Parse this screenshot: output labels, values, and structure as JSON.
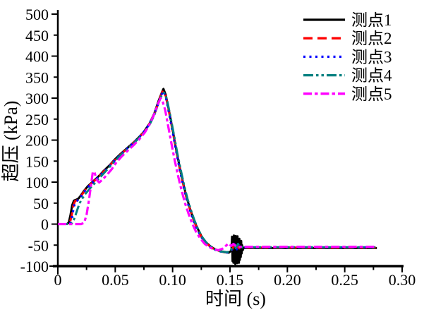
{
  "figure": {
    "background": "#ffffff"
  },
  "chart_data": {
    "type": "line",
    "title": "",
    "xlabel": "时间 (s)",
    "ylabel": "超压 (kPa)",
    "xlim": [
      0,
      0.3
    ],
    "ylim": [
      -100,
      500
    ],
    "grid": false,
    "legend_position": "top-right",
    "axis_color": "#000000",
    "x_major_ticks": [
      0,
      0.05,
      0.1,
      0.15,
      0.2,
      0.25,
      0.3
    ],
    "x_tick_labels": [
      "0",
      "0.05",
      "0.10",
      "0.15",
      "0.20",
      "0.25",
      "0.30"
    ],
    "x_minor_ticks": [
      0.025,
      0.075,
      0.125,
      0.175,
      0.225,
      0.275
    ],
    "y_ticks": [
      500,
      450,
      400,
      350,
      300,
      250,
      200,
      150,
      100,
      50,
      0,
      -50,
      -100
    ],
    "y_tick_labels": [
      "500",
      "450",
      "400",
      "350",
      "300",
      "250",
      "200",
      "150",
      "100",
      "50",
      "0",
      "-50",
      "-100"
    ],
    "series": [
      {
        "name": "测点1",
        "color": "#000000",
        "linestyle": "solid",
        "dasharray": "",
        "width": 3,
        "points": [
          [
            0,
            0
          ],
          [
            0.008,
            0
          ],
          [
            0.0095,
            4
          ],
          [
            0.011,
            22
          ],
          [
            0.0125,
            45
          ],
          [
            0.014,
            56
          ],
          [
            0.016,
            58
          ],
          [
            0.018,
            61
          ],
          [
            0.02,
            68
          ],
          [
            0.023,
            80
          ],
          [
            0.026,
            90
          ],
          [
            0.03,
            100
          ],
          [
            0.034,
            110
          ],
          [
            0.037,
            118
          ],
          [
            0.04,
            127
          ],
          [
            0.045,
            140
          ],
          [
            0.05,
            155
          ],
          [
            0.055,
            168
          ],
          [
            0.06,
            180
          ],
          [
            0.065,
            192
          ],
          [
            0.07,
            205
          ],
          [
            0.075,
            220
          ],
          [
            0.08,
            240
          ],
          [
            0.084,
            263
          ],
          [
            0.088,
            295
          ],
          [
            0.091,
            316
          ],
          [
            0.092,
            322
          ],
          [
            0.094,
            308
          ],
          [
            0.097,
            268
          ],
          [
            0.1,
            225
          ],
          [
            0.103,
            180
          ],
          [
            0.106,
            138
          ],
          [
            0.109,
            100
          ],
          [
            0.112,
            66
          ],
          [
            0.115,
            38
          ],
          [
            0.118,
            14
          ],
          [
            0.121,
            -6
          ],
          [
            0.125,
            -28
          ],
          [
            0.129,
            -43
          ],
          [
            0.133,
            -53
          ],
          [
            0.137,
            -60
          ],
          [
            0.141,
            -64
          ],
          [
            0.145,
            -66
          ],
          [
            0.149,
            -68
          ],
          [
            0.1512,
            -63
          ],
          [
            0.1518,
            -30
          ],
          [
            0.1522,
            -88
          ],
          [
            0.1526,
            -33
          ],
          [
            0.153,
            -92
          ],
          [
            0.1534,
            -27
          ],
          [
            0.1538,
            -90
          ],
          [
            0.1542,
            -32
          ],
          [
            0.1546,
            -95
          ],
          [
            0.155,
            -28
          ],
          [
            0.1554,
            -90
          ],
          [
            0.1558,
            -34
          ],
          [
            0.1562,
            -93
          ],
          [
            0.1566,
            -29
          ],
          [
            0.157,
            -88
          ],
          [
            0.1574,
            -40
          ],
          [
            0.1578,
            -92
          ],
          [
            0.1582,
            -35
          ],
          [
            0.1586,
            -85
          ],
          [
            0.159,
            -44
          ],
          [
            0.1594,
            -78
          ],
          [
            0.1598,
            -40
          ],
          [
            0.1602,
            -70
          ],
          [
            0.1606,
            -50
          ],
          [
            0.1612,
            -62
          ],
          [
            0.162,
            -56
          ],
          [
            0.163,
            -57
          ],
          [
            0.278,
            -57
          ]
        ]
      },
      {
        "name": "测点2",
        "color": "#ff0000",
        "linestyle": "dashed",
        "dasharray": "13 7",
        "width": 3,
        "points": [
          [
            0,
            0
          ],
          [
            0.009,
            0
          ],
          [
            0.0105,
            3
          ],
          [
            0.012,
            20
          ],
          [
            0.0135,
            44
          ],
          [
            0.015,
            55
          ],
          [
            0.017,
            57
          ],
          [
            0.019,
            62
          ],
          [
            0.022,
            74
          ],
          [
            0.025,
            86
          ],
          [
            0.029,
            96
          ],
          [
            0.033,
            106
          ],
          [
            0.037,
            117
          ],
          [
            0.041,
            128
          ],
          [
            0.046,
            142
          ],
          [
            0.051,
            156
          ],
          [
            0.056,
            169
          ],
          [
            0.061,
            181
          ],
          [
            0.066,
            194
          ],
          [
            0.071,
            207
          ],
          [
            0.076,
            223
          ],
          [
            0.081,
            244
          ],
          [
            0.085,
            268
          ],
          [
            0.089,
            300
          ],
          [
            0.0915,
            318
          ],
          [
            0.094,
            305
          ],
          [
            0.097,
            265
          ],
          [
            0.1,
            222
          ],
          [
            0.103,
            177
          ],
          [
            0.106,
            135
          ],
          [
            0.109,
            97
          ],
          [
            0.112,
            63
          ],
          [
            0.115,
            36
          ],
          [
            0.118,
            12
          ],
          [
            0.121,
            -8
          ],
          [
            0.125,
            -30
          ],
          [
            0.129,
            -44
          ],
          [
            0.133,
            -54
          ],
          [
            0.137,
            -61
          ],
          [
            0.141,
            -64
          ],
          [
            0.145,
            -67
          ],
          [
            0.149,
            -68
          ],
          [
            0.152,
            -60
          ],
          [
            0.1535,
            -48
          ],
          [
            0.155,
            -62
          ],
          [
            0.1565,
            -50
          ],
          [
            0.158,
            -58
          ],
          [
            0.16,
            -56
          ],
          [
            0.277,
            -56
          ]
        ]
      },
      {
        "name": "测点3",
        "color": "#0000ff",
        "linestyle": "dotted",
        "dasharray": "3 5.5",
        "width": 3,
        "points": [
          [
            0,
            0
          ],
          [
            0.0095,
            0
          ],
          [
            0.011,
            3
          ],
          [
            0.0125,
            18
          ],
          [
            0.014,
            42
          ],
          [
            0.0155,
            53
          ],
          [
            0.0175,
            57
          ],
          [
            0.02,
            65
          ],
          [
            0.023,
            77
          ],
          [
            0.027,
            90
          ],
          [
            0.031,
            101
          ],
          [
            0.035,
            111
          ],
          [
            0.039,
            122
          ],
          [
            0.043,
            132
          ],
          [
            0.048,
            147
          ],
          [
            0.053,
            161
          ],
          [
            0.058,
            174
          ],
          [
            0.063,
            186
          ],
          [
            0.068,
            199
          ],
          [
            0.073,
            213
          ],
          [
            0.078,
            231
          ],
          [
            0.083,
            255
          ],
          [
            0.087,
            283
          ],
          [
            0.09,
            306
          ],
          [
            0.0918,
            317
          ],
          [
            0.094,
            303
          ],
          [
            0.097,
            262
          ],
          [
            0.1,
            219
          ],
          [
            0.103,
            175
          ],
          [
            0.106,
            132
          ],
          [
            0.109,
            95
          ],
          [
            0.112,
            61
          ],
          [
            0.115,
            34
          ],
          [
            0.118,
            10
          ],
          [
            0.121,
            -10
          ],
          [
            0.125,
            -31
          ],
          [
            0.129,
            -45
          ],
          [
            0.133,
            -55
          ],
          [
            0.137,
            -61
          ],
          [
            0.141,
            -65
          ],
          [
            0.145,
            -67
          ],
          [
            0.149,
            -68
          ],
          [
            0.1525,
            -58
          ],
          [
            0.154,
            -48
          ],
          [
            0.156,
            -60
          ],
          [
            0.1575,
            -50
          ],
          [
            0.159,
            -55
          ],
          [
            0.161,
            -55.5
          ],
          [
            0.277,
            -55.5
          ]
        ]
      },
      {
        "name": "测点4",
        "color": "#008080",
        "linestyle": "dash-dot-dot",
        "dasharray": "14 4 3.5 4 3.5 4",
        "width": 3,
        "points": [
          [
            0,
            0
          ],
          [
            0.0115,
            0
          ],
          [
            0.013,
            4
          ],
          [
            0.015,
            18
          ],
          [
            0.017,
            35
          ],
          [
            0.019,
            50
          ],
          [
            0.021,
            60
          ],
          [
            0.024,
            72
          ],
          [
            0.028,
            85
          ],
          [
            0.032,
            97
          ],
          [
            0.036,
            109
          ],
          [
            0.04,
            121
          ],
          [
            0.045,
            136
          ],
          [
            0.05,
            151
          ],
          [
            0.055,
            165
          ],
          [
            0.06,
            177
          ],
          [
            0.065,
            190
          ],
          [
            0.07,
            203
          ],
          [
            0.075,
            218
          ],
          [
            0.08,
            237
          ],
          [
            0.084,
            259
          ],
          [
            0.088,
            290
          ],
          [
            0.091,
            310
          ],
          [
            0.0925,
            313
          ],
          [
            0.095,
            298
          ],
          [
            0.098,
            258
          ],
          [
            0.101,
            215
          ],
          [
            0.104,
            170
          ],
          [
            0.107,
            130
          ],
          [
            0.11,
            93
          ],
          [
            0.113,
            60
          ],
          [
            0.116,
            33
          ],
          [
            0.119,
            9
          ],
          [
            0.122,
            -11
          ],
          [
            0.126,
            -32
          ],
          [
            0.13,
            -46
          ],
          [
            0.134,
            -55
          ],
          [
            0.138,
            -62
          ],
          [
            0.142,
            -65
          ],
          [
            0.146,
            -67
          ],
          [
            0.15,
            -66
          ],
          [
            0.152,
            -55
          ],
          [
            0.1535,
            -44
          ],
          [
            0.155,
            -57
          ],
          [
            0.157,
            -47
          ],
          [
            0.1585,
            -54
          ],
          [
            0.16,
            -55
          ],
          [
            0.2765,
            -55
          ]
        ]
      },
      {
        "name": "测点5",
        "color": "#ff00ff",
        "linestyle": "dash-dot",
        "dasharray": "12 4 4.5 4",
        "width": 3.2,
        "points": [
          [
            0,
            0
          ],
          [
            0.0205,
            0
          ],
          [
            0.023,
            4
          ],
          [
            0.025,
            22
          ],
          [
            0.027,
            55
          ],
          [
            0.029,
            95
          ],
          [
            0.0305,
            125
          ],
          [
            0.032,
            122
          ],
          [
            0.034,
            105
          ],
          [
            0.036,
            99
          ],
          [
            0.039,
            106
          ],
          [
            0.043,
            118
          ],
          [
            0.047,
            131
          ],
          [
            0.051,
            147
          ],
          [
            0.056,
            162
          ],
          [
            0.061,
            175
          ],
          [
            0.066,
            188
          ],
          [
            0.071,
            202
          ],
          [
            0.076,
            219
          ],
          [
            0.08,
            238
          ],
          [
            0.084,
            262
          ],
          [
            0.0875,
            288
          ],
          [
            0.0895,
            300
          ],
          [
            0.091,
            295
          ],
          [
            0.0935,
            272
          ],
          [
            0.096,
            235
          ],
          [
            0.099,
            192
          ],
          [
            0.102,
            150
          ],
          [
            0.105,
            112
          ],
          [
            0.108,
            78
          ],
          [
            0.111,
            48
          ],
          [
            0.114,
            24
          ],
          [
            0.117,
            2
          ],
          [
            0.12,
            -16
          ],
          [
            0.124,
            -34
          ],
          [
            0.128,
            -47
          ],
          [
            0.132,
            -55
          ],
          [
            0.136,
            -60
          ],
          [
            0.14,
            -62
          ],
          [
            0.144,
            -58
          ],
          [
            0.147,
            -50
          ],
          [
            0.149,
            -46
          ],
          [
            0.151,
            -52
          ],
          [
            0.153,
            -47
          ],
          [
            0.155,
            -52
          ],
          [
            0.157,
            -54
          ],
          [
            0.276,
            -54
          ]
        ]
      }
    ]
  }
}
